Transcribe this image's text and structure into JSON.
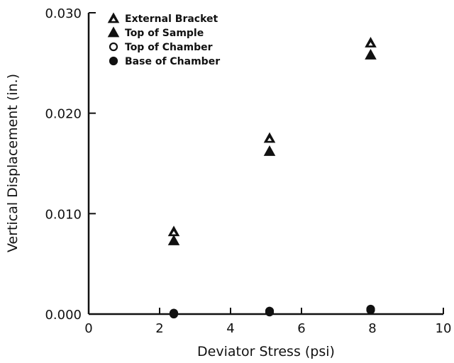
{
  "chart_data": {
    "type": "scatter",
    "title": "",
    "xlabel": "Deviator Stress (psi)",
    "ylabel": "Vertical Displacement (in.)",
    "xlim": [
      0,
      10
    ],
    "ylim": [
      0,
      0.03
    ],
    "xticks": [
      "0",
      "2",
      "4",
      "6",
      "8",
      "10"
    ],
    "yticks": [
      "0.000",
      "0.010",
      "0.020",
      "0.030"
    ],
    "grid": false,
    "legend_position": "top-left",
    "series": [
      {
        "name": "External Bracket",
        "marker": "open-triangle",
        "x": [
          2.4,
          5.1,
          7.95
        ],
        "y": [
          0.0082,
          0.0175,
          0.027
        ]
      },
      {
        "name": "Top of Sample",
        "marker": "filled-triangle",
        "x": [
          2.4,
          5.1,
          7.95
        ],
        "y": [
          0.0073,
          0.0162,
          0.0258
        ]
      },
      {
        "name": "Top of Chamber",
        "marker": "open-circle",
        "x": [
          2.4,
          5.1,
          7.95
        ],
        "y": [
          0.0001,
          0.0003,
          0.0005
        ]
      },
      {
        "name": "Base of Chamber",
        "marker": "filled-circle",
        "x": [
          2.4,
          5.1,
          7.95
        ],
        "y": [
          0.0,
          0.0002,
          0.0004
        ]
      }
    ]
  }
}
